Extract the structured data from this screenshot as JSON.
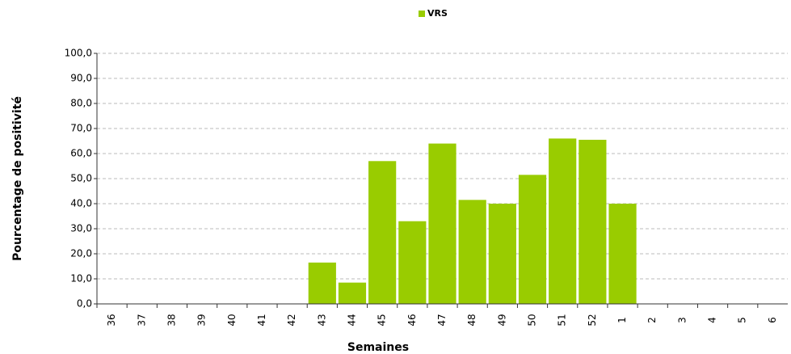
{
  "chart_data": {
    "type": "bar",
    "legend": "VRS",
    "color": "#99cc00",
    "ylabel": "Pourcentage de positivité",
    "xlabel": "Semaines",
    "categories": [
      "36",
      "37",
      "38",
      "39",
      "40",
      "41",
      "42",
      "43",
      "44",
      "45",
      "46",
      "47",
      "48",
      "49",
      "50",
      "51",
      "52",
      "1",
      "2",
      "3",
      "4",
      "5",
      "6"
    ],
    "values": [
      null,
      null,
      null,
      null,
      null,
      null,
      null,
      16.5,
      8.5,
      57,
      33,
      64,
      41.5,
      40,
      51.5,
      66,
      65.5,
      40,
      null,
      null,
      null,
      null,
      null
    ],
    "ylim": [
      0,
      100
    ],
    "yticks": [
      {
        "value": 0,
        "label": "0,0"
      },
      {
        "value": 10,
        "label": "10,0"
      },
      {
        "value": 20,
        "label": "20,0"
      },
      {
        "value": 30,
        "label": "30,0"
      },
      {
        "value": 40,
        "label": "40,0"
      },
      {
        "value": 50,
        "label": "50,0"
      },
      {
        "value": 60,
        "label": "60,0"
      },
      {
        "value": 70,
        "label": "70,0"
      },
      {
        "value": 80,
        "label": "80,0"
      },
      {
        "value": 90,
        "label": "90,0"
      },
      {
        "value": 100,
        "label": "100,0"
      }
    ],
    "grid": true
  }
}
